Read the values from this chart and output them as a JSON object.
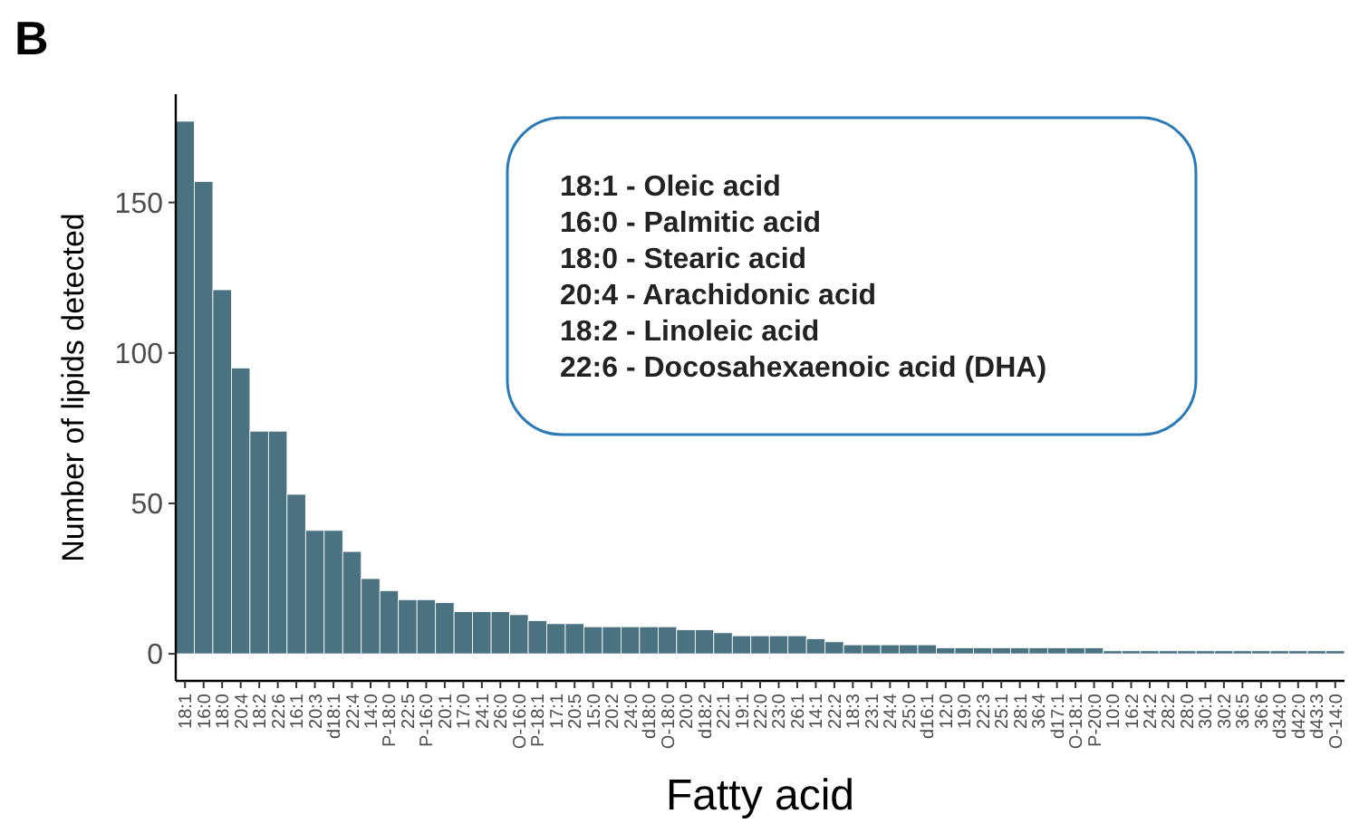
{
  "chart_data": {
    "type": "bar",
    "title": "B",
    "xlabel": "Fatty acid",
    "ylabel": "Number of lipids detected",
    "categories": [
      "18:1",
      "16:0",
      "18:0",
      "20:4",
      "18:2",
      "22:6",
      "16:1",
      "20:3",
      "d18:1",
      "22:4",
      "14:0",
      "P-18:0",
      "22:5",
      "P-16:0",
      "20:1",
      "17:0",
      "24:1",
      "26:0",
      "O-16:0",
      "P-18:1",
      "17:1",
      "20:5",
      "15:0",
      "20:2",
      "24:0",
      "d18:0",
      "O-18:0",
      "20:0",
      "d18:2",
      "22:1",
      "19:1",
      "22:0",
      "23:0",
      "26:1",
      "14:1",
      "22:2",
      "18:3",
      "23:1",
      "24:4",
      "25:0",
      "d16:1",
      "12:0",
      "19:0",
      "22:3",
      "25:1",
      "28:1",
      "36:4",
      "d17:1",
      "O-18:1",
      "P-20:0",
      "10:0",
      "16:2",
      "24:2",
      "28:2",
      "28:0",
      "30:1",
      "30:2",
      "36:5",
      "36:6",
      "d34:0",
      "d42:0",
      "d43:3",
      "O-14:0"
    ],
    "values": [
      177,
      157,
      121,
      95,
      74,
      74,
      53,
      41,
      41,
      34,
      25,
      21,
      18,
      18,
      17,
      14,
      14,
      14,
      13,
      11,
      10,
      10,
      9,
      9,
      9,
      9,
      9,
      8,
      8,
      7,
      6,
      6,
      6,
      6,
      5,
      4,
      3,
      3,
      3,
      3,
      3,
      2,
      2,
      2,
      2,
      2,
      2,
      2,
      2,
      2,
      1,
      1,
      1,
      1,
      1,
      1,
      1,
      1,
      1,
      1,
      1,
      1,
      1
    ],
    "color": "#4a7280",
    "ylim": [
      -9,
      186
    ],
    "yticks": [
      0,
      50,
      100,
      150
    ],
    "grid": false,
    "annotations": [
      "18:1 - Oleic acid",
      "16:0 - Palmitic acid",
      "18:0 - Stearic acid",
      "20:4 - Arachidonic acid",
      "18:2 - Linoleic acid",
      "22:6 - Docosahexaenoic acid (DHA)"
    ]
  }
}
